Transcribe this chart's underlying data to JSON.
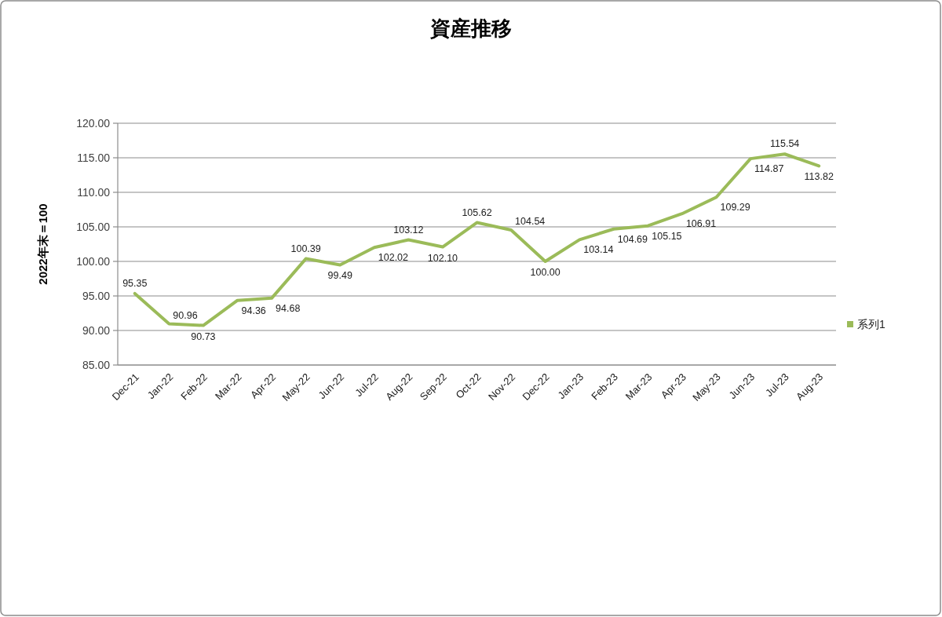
{
  "chart_data": {
    "type": "line",
    "title": "資産推移",
    "ylabel": "2022年末＝100",
    "categories": [
      "Dec-21",
      "Jan-22",
      "Feb-22",
      "Mar-22",
      "Apr-22",
      "May-22",
      "Jun-22",
      "Jul-22",
      "Aug-22",
      "Sep-22",
      "Oct-22",
      "Nov-22",
      "Dec-22",
      "Jan-23",
      "Feb-23",
      "Mar-23",
      "Apr-23",
      "May-23",
      "Jun-23",
      "Jul-23",
      "Aug-23"
    ],
    "series": [
      {
        "name": "系列1",
        "color": "#9bbb59",
        "values": [
          95.35,
          90.96,
          90.73,
          94.36,
          94.68,
          100.39,
          99.49,
          102.02,
          103.12,
          102.1,
          105.62,
          104.54,
          100.0,
          103.14,
          104.69,
          105.15,
          106.91,
          109.29,
          114.87,
          115.54,
          113.82
        ],
        "value_labels": [
          "95.35",
          "90.96",
          "90.73",
          "94.36",
          "94.68",
          "100.39",
          "99.49",
          "102.02",
          "103.12",
          "102.10",
          "105.62",
          "104.54",
          "100.00",
          "103.14",
          "104.69",
          "105.15",
          "106.91",
          "109.29",
          "114.87",
          "115.54",
          "113.82"
        ]
      }
    ],
    "ylim": [
      85,
      120
    ],
    "yticks": [
      {
        "value": 85,
        "label": "85.00"
      },
      {
        "value": 90,
        "label": "90.00"
      },
      {
        "value": 95,
        "label": "95.00"
      },
      {
        "value": 100,
        "label": "100.00"
      },
      {
        "value": 105,
        "label": "105.00"
      },
      {
        "value": 110,
        "label": "110.00"
      },
      {
        "value": 115,
        "label": "115.00"
      },
      {
        "value": 120,
        "label": "120.00"
      }
    ],
    "grid": "y",
    "legend": "right",
    "line_style": "solid"
  }
}
